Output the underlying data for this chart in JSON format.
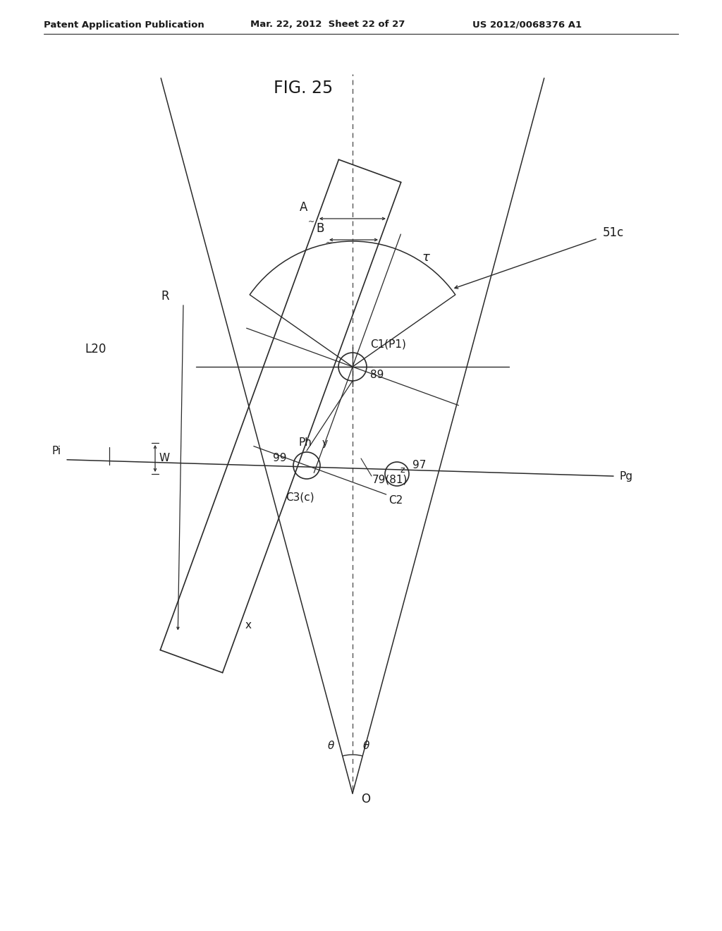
{
  "bg_color": "#ffffff",
  "line_color": "#2a2a2a",
  "header_left": "Patent Application Publication",
  "header_mid": "Mar. 22, 2012  Sheet 22 of 27",
  "header_right": "US 2012/0068376 A1",
  "fig_title": "FIG. 25"
}
